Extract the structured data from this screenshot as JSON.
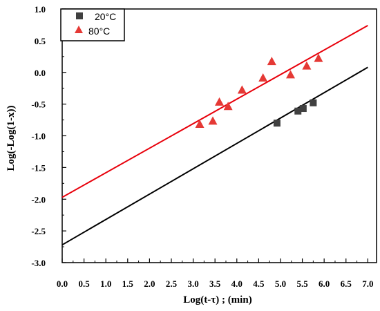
{
  "chart_data": {
    "type": "scatter",
    "xlabel": "Log(t-τ) ; (min)",
    "ylabel": "Log(-Log(1-x))",
    "xlim": [
      0.0,
      7.2
    ],
    "ylim": [
      -3.0,
      1.0
    ],
    "x_ticks": [
      "0.0",
      "0.5",
      "1.0",
      "1.5",
      "2.0",
      "2.5",
      "3.0",
      "3.5",
      "4.0",
      "4.5",
      "5.0",
      "5.5",
      "6.0",
      "6.5",
      "7.0"
    ],
    "y_ticks": [
      "1.0",
      "0.5",
      "0.0",
      "-0.5",
      "-1.0",
      "-1.5",
      "-2.0",
      "-2.5",
      "-3.0"
    ],
    "grid": false,
    "legend_position": "top-left",
    "series": [
      {
        "name": "20°C",
        "marker": "square",
        "color": "#404040",
        "line_color": "#000000",
        "points": [
          [
            4.92,
            -0.8
          ],
          [
            5.4,
            -0.61
          ],
          [
            5.52,
            -0.57
          ],
          [
            5.75,
            -0.48
          ]
        ],
        "fit": {
          "x": [
            0.0,
            7.0
          ],
          "y": [
            -2.72,
            0.08
          ]
        }
      },
      {
        "name": "80°C",
        "marker": "triangle",
        "color": "#e53935",
        "line_color": "#e8000b",
        "points": [
          [
            3.15,
            -0.82
          ],
          [
            3.45,
            -0.77
          ],
          [
            3.6,
            -0.47
          ],
          [
            3.8,
            -0.54
          ],
          [
            4.12,
            -0.28
          ],
          [
            4.6,
            -0.09
          ],
          [
            4.8,
            0.17
          ],
          [
            5.23,
            -0.04
          ],
          [
            5.6,
            0.1
          ],
          [
            5.87,
            0.22
          ]
        ],
        "fit": {
          "x": [
            0.0,
            7.0
          ],
          "y": [
            -1.97,
            0.74
          ]
        }
      }
    ]
  }
}
